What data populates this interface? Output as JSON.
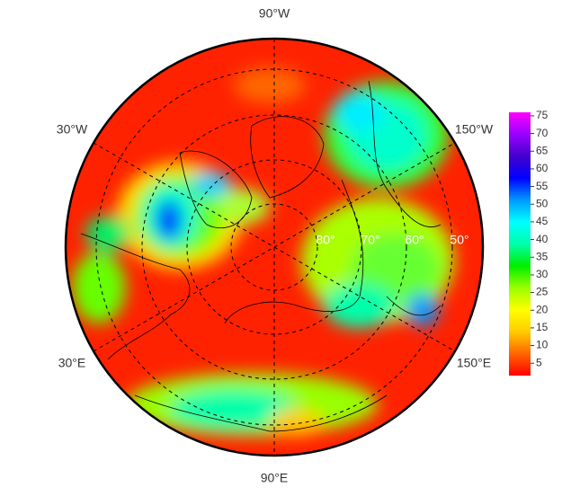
{
  "map": {
    "type": "polar-map",
    "longitude_labels": [
      "90°W",
      "30°W",
      "150°W",
      "30°E",
      "150°E",
      "90°E"
    ],
    "latitude_labels": [
      "80°",
      "70°",
      "60°",
      "50°"
    ],
    "colorbar": {
      "colors": [
        "#ff0000",
        "#ff6600",
        "#ffcc00",
        "#ffff00",
        "#99ff00",
        "#00ee00",
        "#00ffaa",
        "#00ffff",
        "#0099ff",
        "#0000ff",
        "#4400cc",
        "#9900ff",
        "#ff00ff"
      ],
      "lim": [
        1.5,
        76
      ],
      "ticks": [
        5,
        10,
        15,
        20,
        25,
        30,
        35,
        40,
        45,
        50,
        55,
        60,
        65,
        70,
        75
      ]
    }
  }
}
